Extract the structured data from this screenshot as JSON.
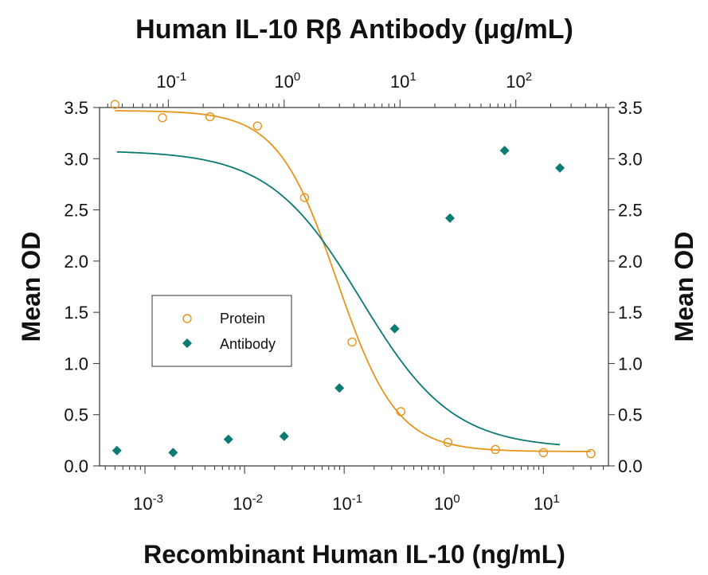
{
  "chart_data": {
    "type": "scatter",
    "title": "Human IL-10 Rβ Antibody (μg/mL)",
    "xlabel": "Recombinant Human IL-10 (ng/mL)",
    "ylabel_left": "Mean OD",
    "ylabel_right": "Mean OD",
    "x_scale": "log",
    "x_bottom_range": [
      0.00035,
      45
    ],
    "x_top_range": [
      0.0255,
      630
    ],
    "ylim": [
      0,
      3.5
    ],
    "y_ticks": [
      "0.0",
      "0.5",
      "1.0",
      "1.5",
      "2.0",
      "2.5",
      "3.0",
      "3.5"
    ],
    "x_bottom_ticks": [
      {
        "base": "10",
        "exp": "-3",
        "value": 0.001
      },
      {
        "base": "10",
        "exp": "-2",
        "value": 0.01
      },
      {
        "base": "10",
        "exp": "-1",
        "value": 0.1
      },
      {
        "base": "10",
        "exp": "0",
        "value": 1
      },
      {
        "base": "10",
        "exp": "1",
        "value": 10
      }
    ],
    "x_top_ticks": [
      {
        "base": "10",
        "exp": "-1",
        "value": 0.1
      },
      {
        "base": "10",
        "exp": "0",
        "value": 1
      },
      {
        "base": "10",
        "exp": "1",
        "value": 10
      },
      {
        "base": "10",
        "exp": "2",
        "value": 100
      }
    ],
    "legend_position": "center-left",
    "series": [
      {
        "name": "Protein",
        "axis": "bottom",
        "marker": "open-circle",
        "color": "#e8941a",
        "x": [
          0.0005,
          0.0015,
          0.0045,
          0.0135,
          0.04,
          0.12,
          0.37,
          1.1,
          3.3,
          10,
          30
        ],
        "y": [
          3.53,
          3.4,
          3.41,
          3.32,
          2.62,
          1.21,
          0.53,
          0.23,
          0.16,
          0.13,
          0.12
        ]
      },
      {
        "name": "Antibody",
        "axis": "top",
        "marker": "filled-diamond",
        "color": "#0a7a73",
        "x": [
          0.036,
          0.11,
          0.33,
          1.0,
          3.0,
          9.0,
          27,
          80,
          240
        ],
        "y": [
          0.15,
          0.13,
          0.26,
          0.29,
          0.76,
          1.34,
          2.42,
          3.08,
          2.91
        ]
      }
    ]
  }
}
